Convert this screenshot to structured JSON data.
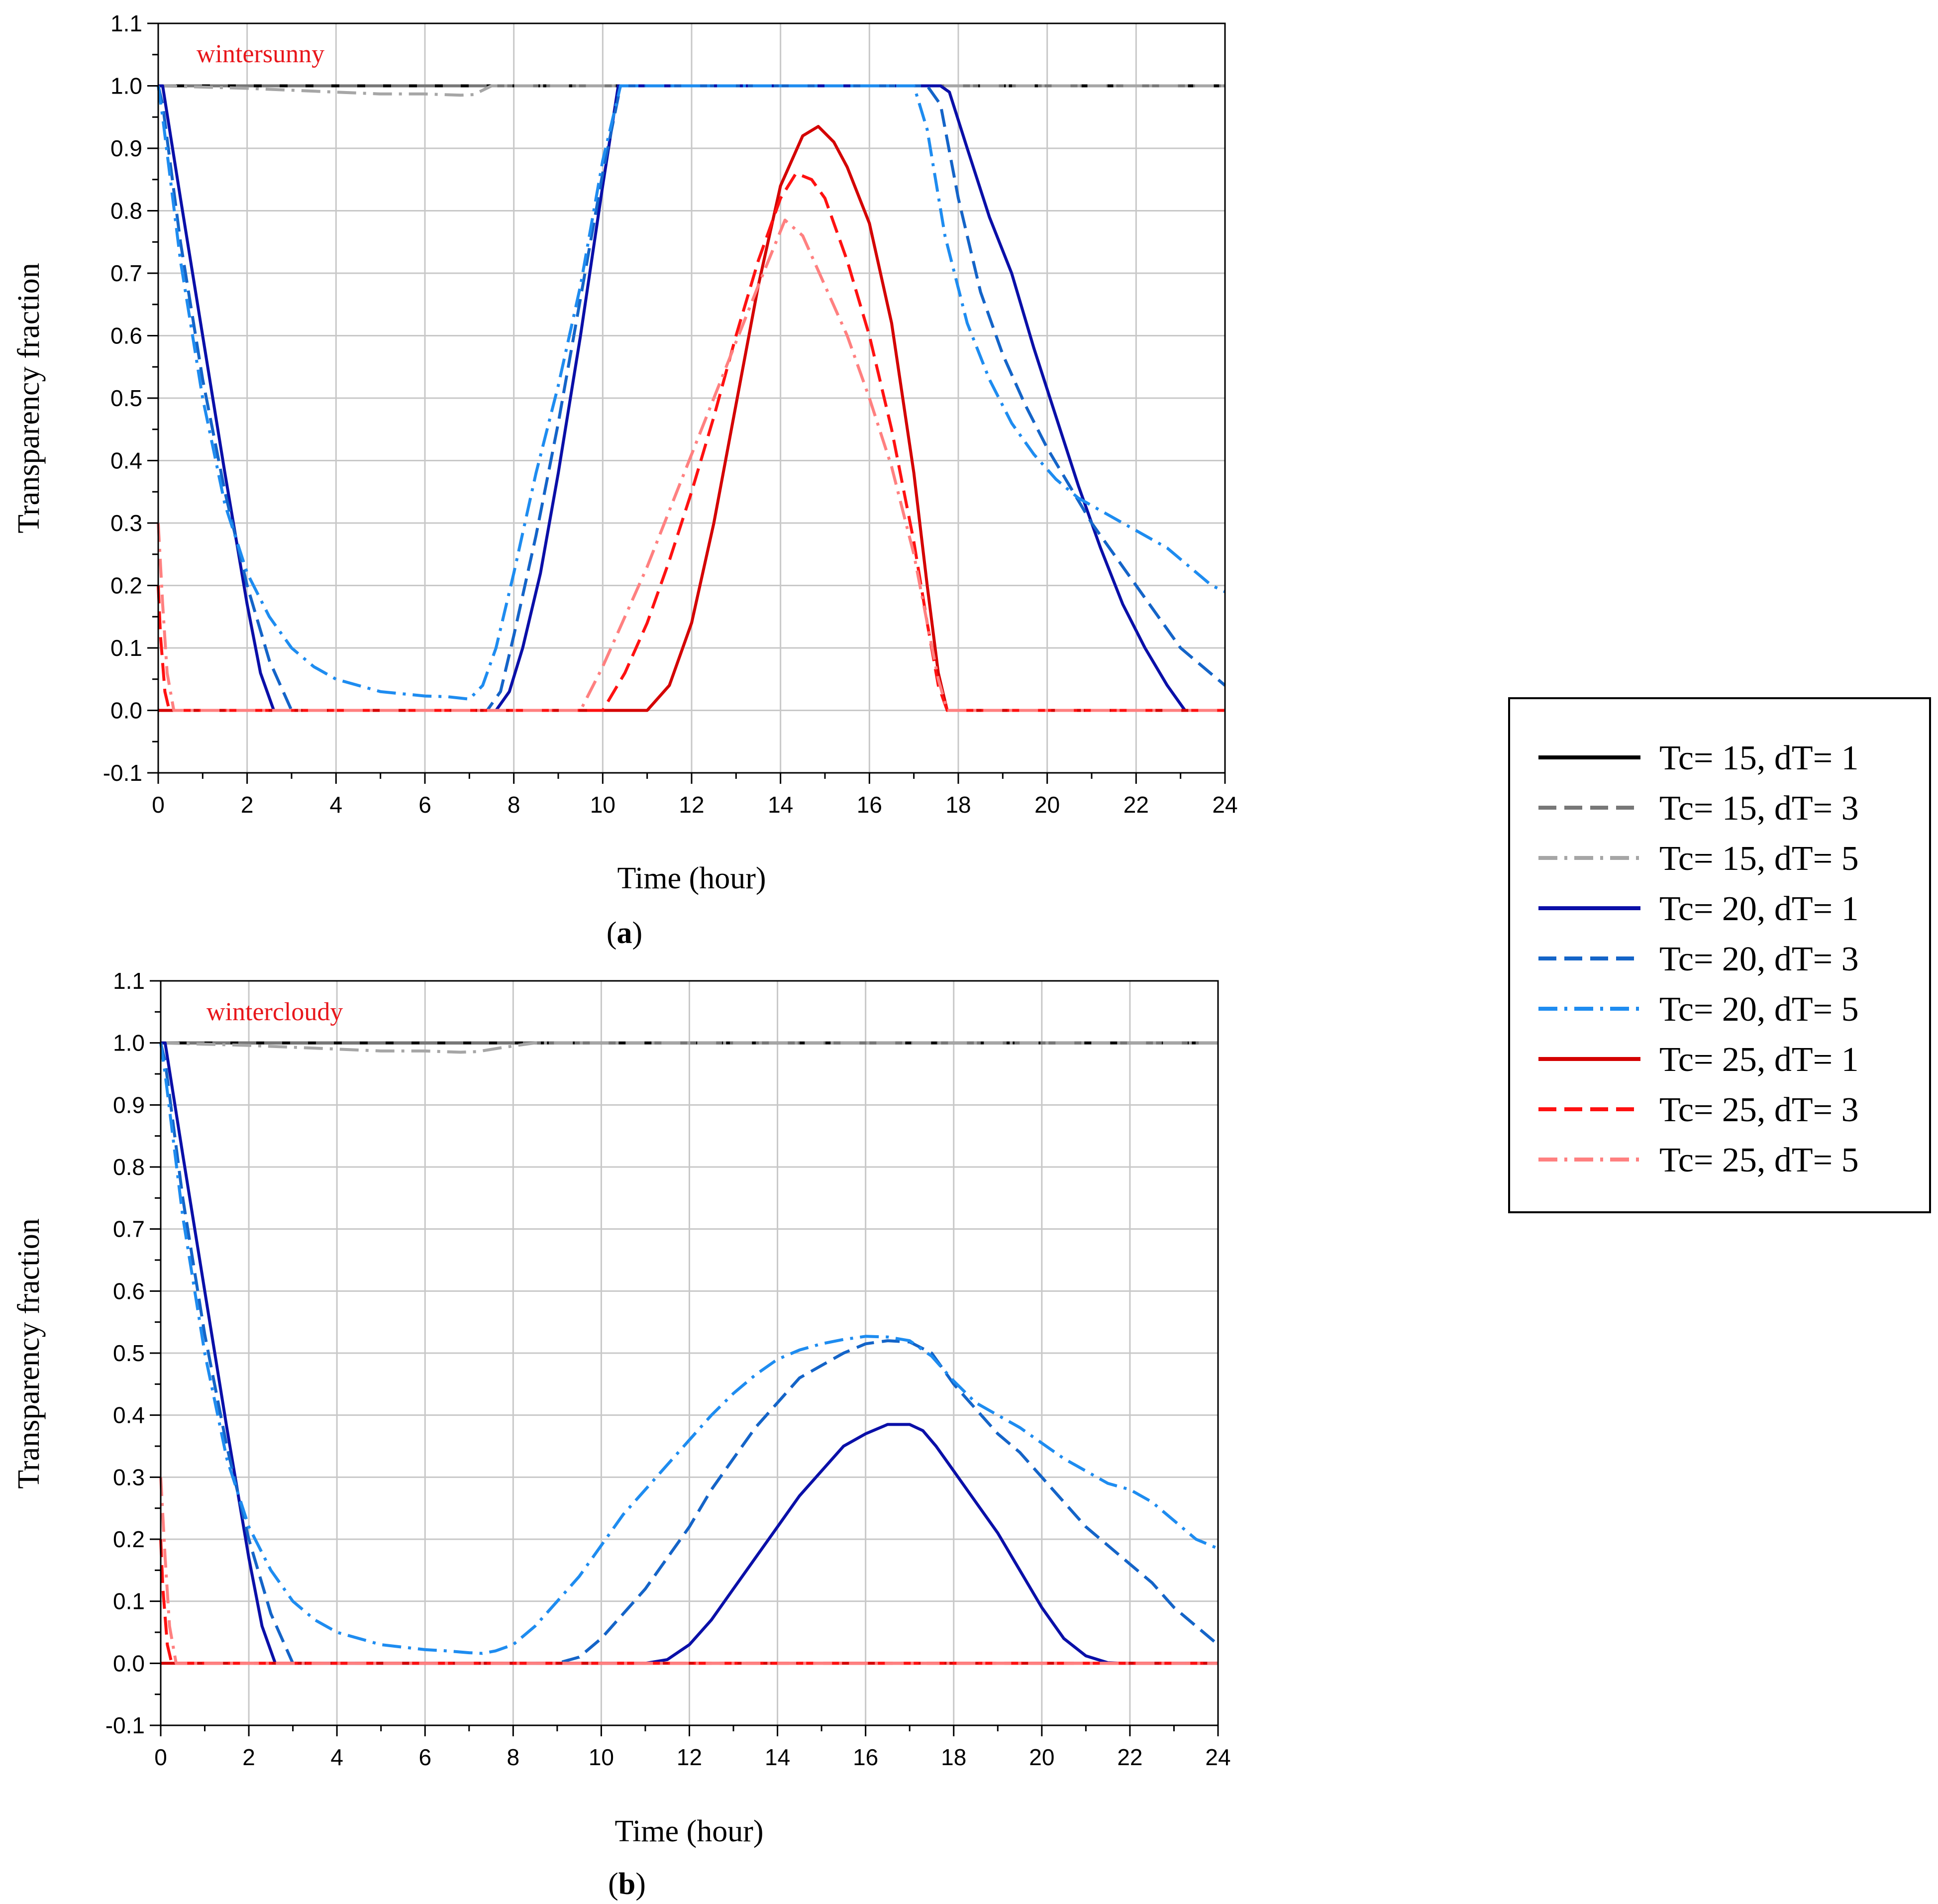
{
  "figure": {
    "legend": {
      "entries": [
        {
          "label": "Tc= 15, dT= 1",
          "color": "#000000",
          "dash": "solid"
        },
        {
          "label": "Tc= 15, dT= 3",
          "color": "#777777",
          "dash": "dash"
        },
        {
          "label": "Tc= 15, dT= 5",
          "color": "#a6a6a6",
          "dash": "dashdot"
        },
        {
          "label": "Tc= 20, dT= 1",
          "color": "#0a0fa8",
          "dash": "solid"
        },
        {
          "label": "Tc= 20, dT= 3",
          "color": "#1464c8",
          "dash": "dash"
        },
        {
          "label": "Tc= 20, dT= 5",
          "color": "#1e8cf0",
          "dash": "dashdot"
        },
        {
          "label": "Tc= 25, dT= 1",
          "color": "#d40000",
          "dash": "solid"
        },
        {
          "label": "Tc= 25, dT= 3",
          "color": "#ff1111",
          "dash": "dash"
        },
        {
          "label": "Tc= 25, dT= 5",
          "color": "#ff8080",
          "dash": "dashdot"
        }
      ]
    }
  },
  "chart_data": [
    {
      "type": "line",
      "panel_label": "(a)",
      "panel_letter": "a",
      "annotation": "wintersunny",
      "xlabel": "Time (hour)",
      "ylabel": "Transparency fraction",
      "xlim": [
        0,
        24
      ],
      "ylim": [
        -0.1,
        1.1
      ],
      "xticks": [
        0,
        2,
        4,
        6,
        8,
        10,
        12,
        14,
        16,
        18,
        20,
        22,
        24
      ],
      "yticks": [
        -0.1,
        0.0,
        0.1,
        0.2,
        0.3,
        0.4,
        0.5,
        0.6,
        0.7,
        0.8,
        0.9,
        1.0,
        1.1
      ],
      "grid": true,
      "series": [
        {
          "name": "Tc= 15, dT= 1",
          "x": [
            0,
            24
          ],
          "y": [
            1.0,
            1.0
          ]
        },
        {
          "name": "Tc= 15, dT= 3",
          "x": [
            0,
            24
          ],
          "y": [
            1.0,
            1.0
          ]
        },
        {
          "name": "Tc= 15, dT= 5",
          "x": [
            0,
            1,
            2,
            3,
            4,
            5,
            6,
            6.8,
            7.1,
            7.5,
            8,
            24
          ],
          "y": [
            1.0,
            0.998,
            0.996,
            0.993,
            0.99,
            0.987,
            0.987,
            0.985,
            0.986,
            1.0,
            1.0,
            1.0
          ]
        },
        {
          "name": "Tc= 20, dT= 1",
          "x": [
            0,
            0.1,
            0.5,
            1.0,
            1.5,
            2.0,
            2.3,
            2.6,
            7.6,
            7.9,
            8.2,
            8.6,
            9.0,
            9.5,
            10.0,
            10.35,
            17.6,
            17.8,
            18.2,
            18.7,
            19.2,
            19.7,
            20.2,
            20.7,
            21.2,
            21.7,
            22.2,
            22.7,
            23.1,
            24
          ],
          "y": [
            1.0,
            1.0,
            0.82,
            0.6,
            0.38,
            0.17,
            0.06,
            0.0,
            0.0,
            0.03,
            0.1,
            0.22,
            0.38,
            0.6,
            0.84,
            1.0,
            1.0,
            0.99,
            0.9,
            0.79,
            0.7,
            0.58,
            0.47,
            0.36,
            0.26,
            0.17,
            0.1,
            0.04,
            0.0,
            0.0
          ]
        },
        {
          "name": "Tc= 20, dT= 3",
          "x": [
            0,
            0.1,
            0.5,
            1.0,
            1.5,
            2.0,
            2.5,
            3.0,
            7.4,
            7.7,
            8.0,
            8.5,
            9.0,
            9.5,
            10.0,
            10.4,
            17.3,
            17.6,
            18.0,
            18.5,
            19.0,
            19.5,
            20.0,
            20.5,
            21.0,
            21.5,
            22.0,
            22.5,
            23.0,
            23.5,
            24
          ],
          "y": [
            1.0,
            0.97,
            0.75,
            0.53,
            0.35,
            0.2,
            0.08,
            0.0,
            0.0,
            0.03,
            0.12,
            0.28,
            0.46,
            0.66,
            0.86,
            1.0,
            1.0,
            0.97,
            0.82,
            0.67,
            0.57,
            0.49,
            0.42,
            0.36,
            0.3,
            0.25,
            0.2,
            0.15,
            0.1,
            0.07,
            0.04
          ]
        },
        {
          "name": "Tc= 20, dT= 5",
          "x": [
            0,
            0.1,
            0.5,
            1.0,
            1.5,
            2.0,
            2.5,
            3.0,
            3.5,
            4.0,
            5.0,
            6.0,
            6.5,
            7.0,
            7.3,
            7.6,
            8.0,
            8.5,
            9.0,
            9.5,
            10.0,
            10.4,
            17.0,
            17.3,
            17.7,
            18.2,
            18.7,
            19.2,
            19.7,
            20.2,
            20.7,
            21.2,
            21.7,
            22.2,
            22.7,
            23.2,
            23.7,
            24
          ],
          "y": [
            1.0,
            0.95,
            0.72,
            0.5,
            0.33,
            0.22,
            0.15,
            0.1,
            0.07,
            0.05,
            0.03,
            0.023,
            0.022,
            0.018,
            0.04,
            0.1,
            0.22,
            0.38,
            0.52,
            0.68,
            0.88,
            1.0,
            1.0,
            0.93,
            0.76,
            0.62,
            0.53,
            0.46,
            0.41,
            0.37,
            0.34,
            0.32,
            0.3,
            0.28,
            0.26,
            0.23,
            0.2,
            0.19
          ]
        },
        {
          "name": "Tc= 25, dT= 1",
          "x": [
            0,
            0.05,
            0.15,
            0.25,
            11.0,
            11.5,
            12.0,
            12.5,
            13.0,
            13.5,
            14.0,
            14.5,
            14.85,
            15.2,
            15.5,
            16.0,
            16.5,
            17.0,
            17.3,
            17.55,
            17.75,
            24
          ],
          "y": [
            0.0,
            0.0,
            0.0,
            0.0,
            0.0,
            0.04,
            0.14,
            0.3,
            0.49,
            0.68,
            0.84,
            0.92,
            0.935,
            0.91,
            0.87,
            0.78,
            0.62,
            0.38,
            0.2,
            0.06,
            0.0,
            0.0
          ]
        },
        {
          "name": "Tc= 25, dT= 3",
          "x": [
            0,
            0.05,
            0.15,
            0.25,
            10.0,
            10.5,
            11.0,
            11.5,
            12.0,
            12.5,
            13.0,
            13.5,
            14.0,
            14.35,
            14.7,
            15.0,
            15.5,
            16.0,
            16.5,
            17.0,
            17.3,
            17.55,
            17.75,
            24
          ],
          "y": [
            0.2,
            0.12,
            0.03,
            0.0,
            0.0,
            0.06,
            0.14,
            0.24,
            0.35,
            0.47,
            0.6,
            0.72,
            0.82,
            0.86,
            0.85,
            0.82,
            0.72,
            0.6,
            0.45,
            0.27,
            0.14,
            0.04,
            0.0,
            0.0
          ]
        },
        {
          "name": "Tc= 25, dT= 5",
          "x": [
            0,
            0.1,
            0.2,
            0.35,
            9.5,
            10.0,
            10.5,
            11.0,
            11.5,
            12.0,
            12.5,
            13.0,
            13.5,
            14.1,
            14.5,
            15.0,
            15.5,
            16.0,
            16.5,
            17.0,
            17.3,
            17.55,
            17.75,
            24
          ],
          "y": [
            0.3,
            0.17,
            0.06,
            0.0,
            0.0,
            0.07,
            0.15,
            0.23,
            0.32,
            0.41,
            0.5,
            0.59,
            0.68,
            0.785,
            0.76,
            0.68,
            0.6,
            0.5,
            0.39,
            0.25,
            0.14,
            0.05,
            0.0,
            0.0
          ]
        }
      ]
    },
    {
      "type": "line",
      "panel_label": "(b)",
      "panel_letter": "b",
      "annotation": "wintercloudy",
      "xlabel": "Time (hour)",
      "ylabel": "Transparency fraction",
      "xlim": [
        0,
        24
      ],
      "ylim": [
        -0.1,
        1.1
      ],
      "xticks": [
        0,
        2,
        4,
        6,
        8,
        10,
        12,
        14,
        16,
        18,
        20,
        22,
        24
      ],
      "yticks": [
        -0.1,
        0.0,
        0.1,
        0.2,
        0.3,
        0.4,
        0.5,
        0.6,
        0.7,
        0.8,
        0.9,
        1.0,
        1.1
      ],
      "grid": true,
      "series": [
        {
          "name": "Tc= 15, dT= 1",
          "x": [
            0,
            24
          ],
          "y": [
            1.0,
            1.0
          ]
        },
        {
          "name": "Tc= 15, dT= 3",
          "x": [
            0,
            24
          ],
          "y": [
            1.0,
            1.0
          ]
        },
        {
          "name": "Tc= 15, dT= 5",
          "x": [
            0,
            1,
            2,
            3,
            4,
            5,
            6,
            6.8,
            7.2,
            7.8,
            8.5,
            24
          ],
          "y": [
            1.0,
            0.998,
            0.996,
            0.993,
            0.99,
            0.987,
            0.987,
            0.985,
            0.986,
            0.993,
            1.0,
            1.0
          ]
        },
        {
          "name": "Tc= 20, dT= 1",
          "x": [
            0,
            0.1,
            0.5,
            1.0,
            1.5,
            2.0,
            2.3,
            2.6,
            11.0,
            11.5,
            12.0,
            12.5,
            13.0,
            13.5,
            14.0,
            14.5,
            15.0,
            15.5,
            16.0,
            16.5,
            17.0,
            17.3,
            17.6,
            18.0,
            18.5,
            19.0,
            19.5,
            20.0,
            20.5,
            21.0,
            21.5,
            21.8,
            24
          ],
          "y": [
            1.0,
            1.0,
            0.82,
            0.6,
            0.38,
            0.17,
            0.06,
            0.0,
            0.0,
            0.006,
            0.03,
            0.07,
            0.12,
            0.17,
            0.22,
            0.27,
            0.31,
            0.35,
            0.37,
            0.385,
            0.385,
            0.375,
            0.35,
            0.31,
            0.26,
            0.21,
            0.15,
            0.09,
            0.04,
            0.012,
            0.001,
            0.0,
            0.0
          ]
        },
        {
          "name": "Tc= 20, dT= 3",
          "x": [
            0,
            0.1,
            0.5,
            1.0,
            1.5,
            2.0,
            2.5,
            3.0,
            9.0,
            9.5,
            10.0,
            10.5,
            11.0,
            11.5,
            12.0,
            12.5,
            13.0,
            13.5,
            14.0,
            14.5,
            15.0,
            15.5,
            16.0,
            16.5,
            17.0,
            17.5,
            18.0,
            18.5,
            19.0,
            19.5,
            20.0,
            20.5,
            21.0,
            21.5,
            22.0,
            22.5,
            23.0,
            23.5,
            24
          ],
          "y": [
            1.0,
            0.97,
            0.75,
            0.53,
            0.35,
            0.2,
            0.08,
            0.0,
            0.0,
            0.01,
            0.04,
            0.08,
            0.12,
            0.17,
            0.22,
            0.28,
            0.33,
            0.38,
            0.42,
            0.46,
            0.48,
            0.5,
            0.515,
            0.52,
            0.518,
            0.5,
            0.45,
            0.41,
            0.37,
            0.34,
            0.3,
            0.26,
            0.22,
            0.19,
            0.16,
            0.13,
            0.09,
            0.06,
            0.03
          ]
        },
        {
          "name": "Tc= 20, dT= 5",
          "x": [
            0,
            0.1,
            0.5,
            1.0,
            1.5,
            2.0,
            2.5,
            3.0,
            3.5,
            4.0,
            5.0,
            6.0,
            6.5,
            7.0,
            7.3,
            7.6,
            8.0,
            8.5,
            9.0,
            9.5,
            10.0,
            10.5,
            11.0,
            11.5,
            12.0,
            12.5,
            13.0,
            13.5,
            14.0,
            14.5,
            15.0,
            15.5,
            16.0,
            16.5,
            17.0,
            17.5,
            18.0,
            18.5,
            19.0,
            19.5,
            20.0,
            20.5,
            21.0,
            21.5,
            22.0,
            22.5,
            23.0,
            23.5,
            24
          ],
          "y": [
            1.0,
            0.95,
            0.72,
            0.5,
            0.33,
            0.22,
            0.15,
            0.1,
            0.07,
            0.05,
            0.03,
            0.022,
            0.02,
            0.017,
            0.016,
            0.02,
            0.03,
            0.06,
            0.1,
            0.14,
            0.19,
            0.24,
            0.28,
            0.32,
            0.36,
            0.4,
            0.435,
            0.465,
            0.49,
            0.505,
            0.515,
            0.522,
            0.527,
            0.526,
            0.52,
            0.495,
            0.455,
            0.42,
            0.4,
            0.38,
            0.355,
            0.33,
            0.31,
            0.29,
            0.28,
            0.26,
            0.23,
            0.2,
            0.185
          ]
        },
        {
          "name": "Tc= 25, dT= 1",
          "x": [
            0,
            0.05,
            0.15,
            0.25,
            24
          ],
          "y": [
            0.0,
            0.0,
            0.0,
            0.0,
            0.0
          ]
        },
        {
          "name": "Tc= 25, dT= 3",
          "x": [
            0,
            0.05,
            0.15,
            0.25,
            24
          ],
          "y": [
            0.2,
            0.12,
            0.03,
            0.0,
            0.0
          ]
        },
        {
          "name": "Tc= 25, dT= 5",
          "x": [
            0,
            0.1,
            0.2,
            0.35,
            24
          ],
          "y": [
            0.3,
            0.17,
            0.06,
            0.0,
            0.0
          ]
        }
      ]
    }
  ]
}
